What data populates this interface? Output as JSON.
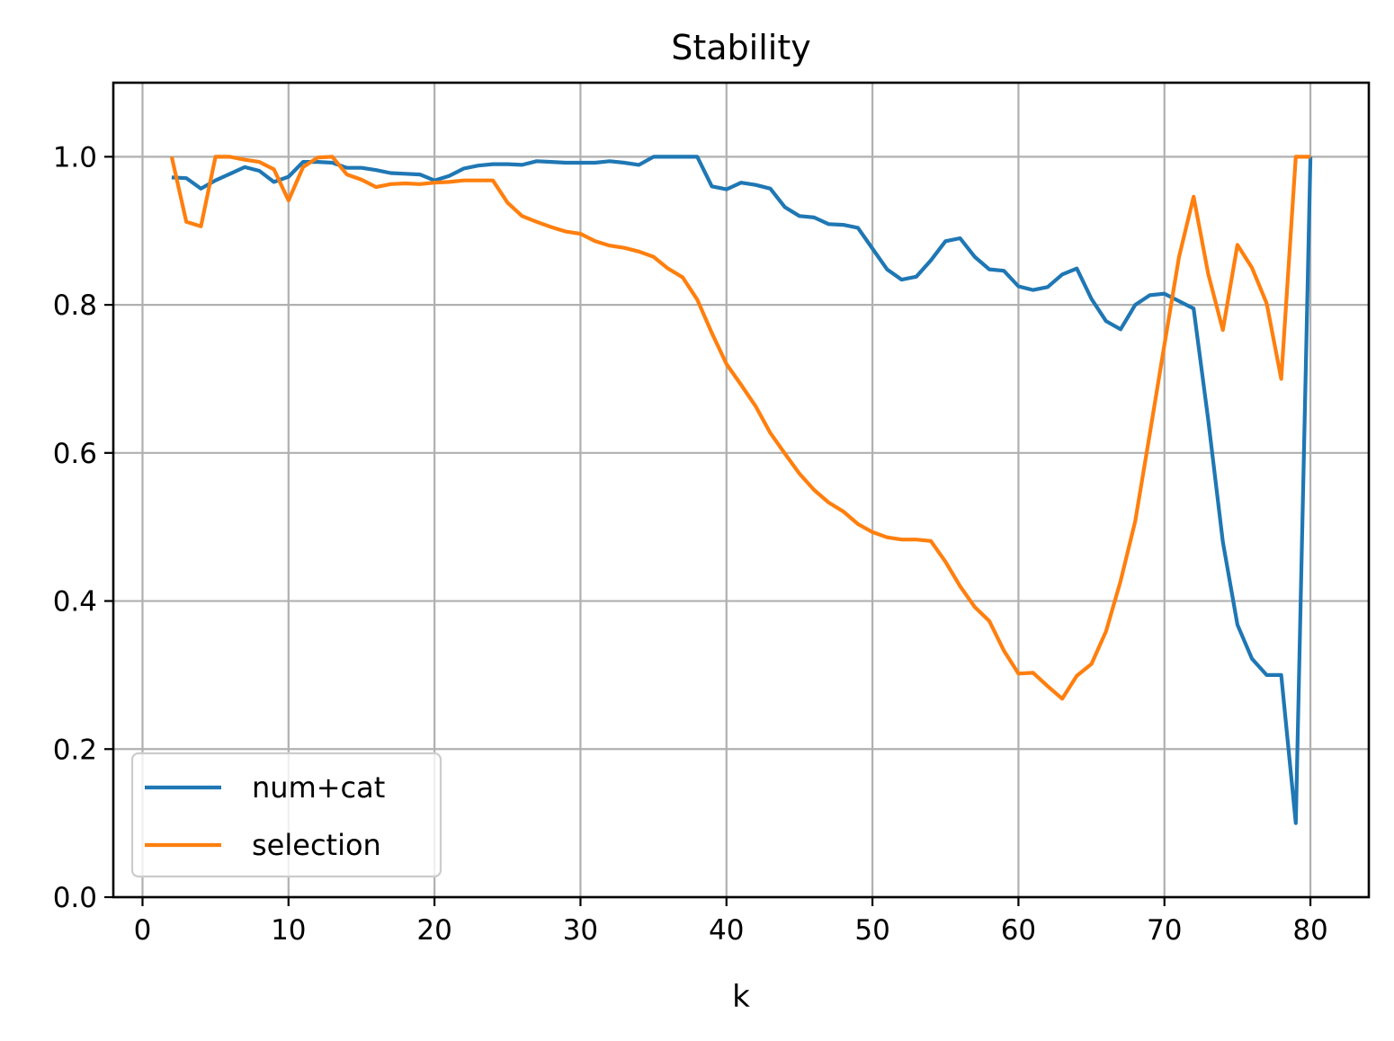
{
  "chart_data": {
    "type": "line",
    "title": "Stability",
    "xlabel": "k",
    "ylabel": "",
    "xlim": [
      -2,
      84
    ],
    "ylim": [
      0.0,
      1.1
    ],
    "xticks": [
      0,
      10,
      20,
      30,
      40,
      50,
      60,
      70,
      80
    ],
    "xtick_labels": [
      "0",
      "10",
      "20",
      "30",
      "40",
      "50",
      "60",
      "70",
      "80"
    ],
    "yticks": [
      0.0,
      0.2,
      0.4,
      0.6,
      0.8,
      1.0
    ],
    "ytick_labels": [
      "0.0",
      "0.2",
      "0.4",
      "0.6",
      "0.8",
      "1.0"
    ],
    "grid": true,
    "legend_position": "lower-left",
    "x": [
      2,
      3,
      4,
      5,
      6,
      7,
      8,
      9,
      10,
      11,
      12,
      13,
      14,
      15,
      16,
      17,
      18,
      19,
      20,
      21,
      22,
      23,
      24,
      25,
      26,
      27,
      28,
      29,
      30,
      31,
      32,
      33,
      34,
      35,
      36,
      37,
      38,
      39,
      40,
      41,
      42,
      43,
      44,
      45,
      46,
      47,
      48,
      49,
      50,
      51,
      52,
      53,
      54,
      55,
      56,
      57,
      58,
      59,
      60,
      61,
      62,
      63,
      64,
      65,
      66,
      67,
      68,
      69,
      70,
      71,
      72,
      73,
      74,
      75,
      76,
      77,
      78,
      79,
      80
    ],
    "series": [
      {
        "name": "num+cat",
        "color": "#1f77b4",
        "values": [
          0.972,
          0.971,
          0.957,
          0.968,
          0.977,
          0.986,
          0.981,
          0.966,
          0.973,
          0.993,
          0.993,
          0.992,
          0.985,
          0.985,
          0.982,
          0.978,
          0.977,
          0.976,
          0.968,
          0.974,
          0.984,
          0.988,
          0.99,
          0.99,
          0.989,
          0.994,
          0.993,
          0.992,
          0.992,
          0.992,
          0.994,
          0.992,
          0.989,
          1.0,
          1.0,
          1.0,
          1.0,
          0.96,
          0.956,
          0.965,
          0.962,
          0.957,
          0.932,
          0.92,
          0.918,
          0.909,
          0.908,
          0.904,
          0.876,
          0.848,
          0.834,
          0.838,
          0.86,
          0.886,
          0.89,
          0.865,
          0.848,
          0.846,
          0.825,
          0.82,
          0.824,
          0.841,
          0.849,
          0.808,
          0.778,
          0.767,
          0.8,
          0.813,
          0.815,
          0.805,
          0.795,
          0.645,
          0.48,
          0.368,
          0.322,
          0.3,
          0.3,
          0.1,
          1.0
        ]
      },
      {
        "name": "selection",
        "color": "#ff7f0e",
        "values": [
          1.0,
          0.912,
          0.906,
          1.0,
          1.0,
          0.996,
          0.993,
          0.983,
          0.941,
          0.986,
          0.999,
          1.0,
          0.976,
          0.969,
          0.959,
          0.963,
          0.964,
          0.963,
          0.965,
          0.966,
          0.968,
          0.968,
          0.968,
          0.938,
          0.92,
          0.912,
          0.905,
          0.899,
          0.896,
          0.886,
          0.88,
          0.877,
          0.872,
          0.865,
          0.849,
          0.837,
          0.807,
          0.762,
          0.72,
          0.692,
          0.663,
          0.627,
          0.599,
          0.572,
          0.55,
          0.533,
          0.521,
          0.504,
          0.493,
          0.486,
          0.483,
          0.483,
          0.481,
          0.453,
          0.42,
          0.392,
          0.373,
          0.333,
          0.302,
          0.303,
          0.285,
          0.268,
          0.299,
          0.315,
          0.359,
          0.427,
          0.508,
          0.626,
          0.746,
          0.865,
          0.946,
          0.842,
          0.766,
          0.881,
          0.85,
          0.802,
          0.7,
          1.0,
          1.0
        ]
      }
    ]
  }
}
